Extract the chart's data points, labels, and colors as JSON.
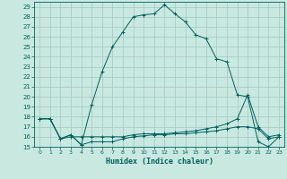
{
  "title": "",
  "xlabel": "Humidex (Indice chaleur)",
  "xlim": [
    -0.5,
    23.5
  ],
  "ylim": [
    15,
    29.5
  ],
  "bg_color": "#c8e8e0",
  "grid_color": "#a0c8c0",
  "line_color": "#006060",
  "xticks": [
    0,
    1,
    2,
    3,
    4,
    5,
    6,
    7,
    8,
    9,
    10,
    11,
    12,
    13,
    14,
    15,
    16,
    17,
    18,
    19,
    20,
    21,
    22,
    23
  ],
  "yticks": [
    15,
    16,
    17,
    18,
    19,
    20,
    21,
    22,
    23,
    24,
    25,
    26,
    27,
    28,
    29
  ],
  "curve1_x": [
    0,
    1,
    2,
    3,
    4,
    5,
    6,
    7,
    8,
    9,
    10,
    11,
    12,
    13,
    14,
    15,
    16,
    17,
    18,
    19,
    20,
    21,
    22,
    23
  ],
  "curve1_y": [
    17.8,
    17.8,
    15.8,
    16.2,
    15.2,
    19.2,
    22.5,
    25.0,
    26.5,
    28.0,
    28.2,
    28.3,
    29.2,
    28.3,
    27.5,
    26.2,
    25.8,
    23.8,
    23.5,
    20.2,
    20.0,
    15.5,
    15.0,
    16.0
  ],
  "curve2_x": [
    0,
    1,
    2,
    3,
    4,
    5,
    6,
    7,
    8,
    9,
    10,
    11,
    12,
    13,
    14,
    15,
    16,
    17,
    18,
    19,
    20,
    21,
    22,
    23
  ],
  "curve2_y": [
    17.8,
    17.8,
    15.8,
    16.0,
    16.0,
    16.0,
    16.0,
    16.0,
    16.0,
    16.2,
    16.3,
    16.3,
    16.3,
    16.4,
    16.5,
    16.6,
    16.8,
    17.0,
    17.3,
    17.8,
    20.2,
    17.0,
    16.0,
    16.2
  ],
  "curve3_x": [
    0,
    1,
    2,
    3,
    4,
    5,
    6,
    7,
    8,
    9,
    10,
    11,
    12,
    13,
    14,
    15,
    16,
    17,
    18,
    19,
    20,
    21,
    22,
    23
  ],
  "curve3_y": [
    17.8,
    17.8,
    15.8,
    16.2,
    15.2,
    15.5,
    15.5,
    15.5,
    15.8,
    16.0,
    16.1,
    16.2,
    16.2,
    16.3,
    16.3,
    16.4,
    16.5,
    16.6,
    16.8,
    17.0,
    17.0,
    16.8,
    15.8,
    16.0
  ]
}
